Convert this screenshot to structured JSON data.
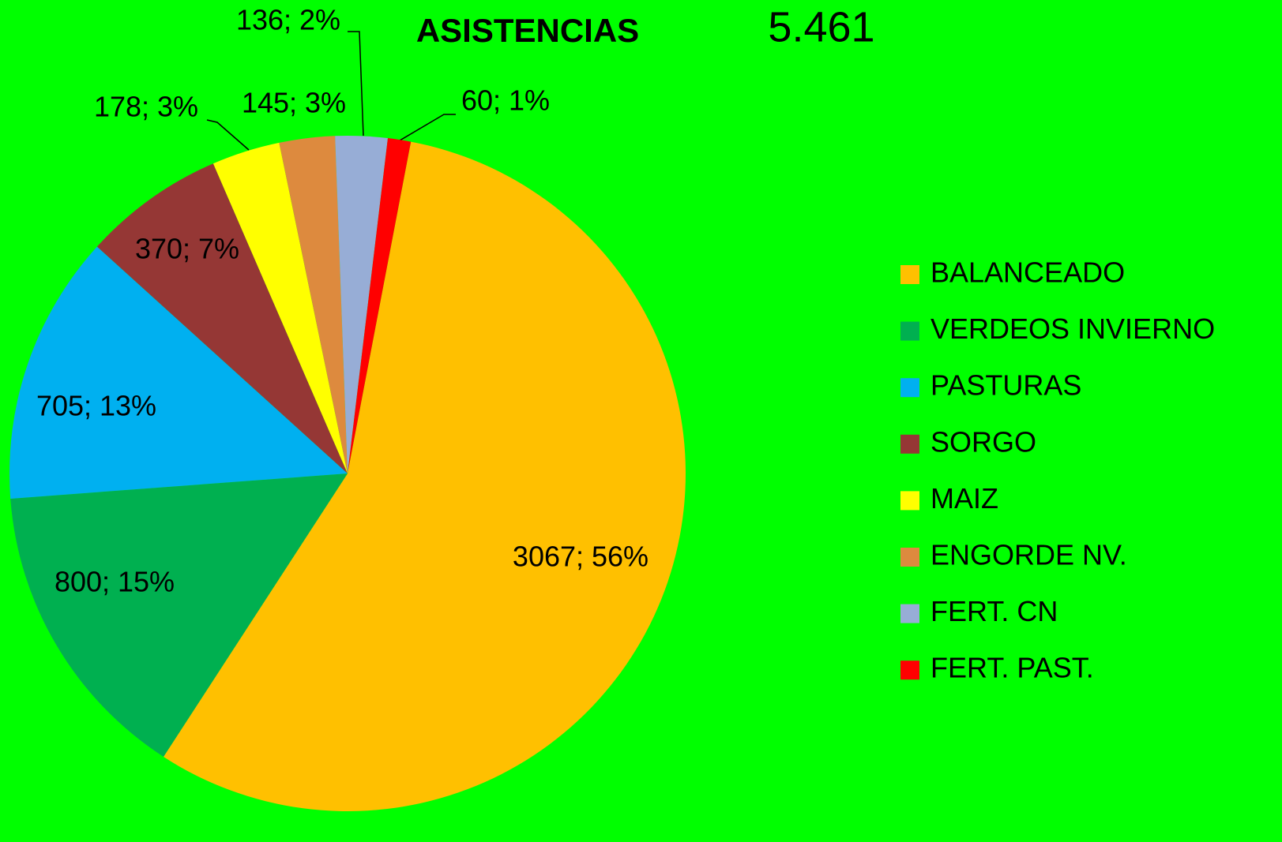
{
  "chart_data": {
    "type": "pie",
    "title": "ASISTENCIAS",
    "annotation": "5.461",
    "categories": [
      "BALANCEADO",
      "VERDEOS INVIERNO",
      "PASTURAS",
      "SORGO",
      "MAIZ",
      "ENGORDE NV.",
      "FERT. CN",
      "FERT. PAST."
    ],
    "values": [
      3067,
      800,
      705,
      370,
      178,
      145,
      136,
      60
    ],
    "value_labels": [
      "3067; 56%",
      "800; 15%",
      "705; 13%",
      "370; 7%",
      "178; 3%",
      "145; 3%",
      "136; 2%",
      "60; 1%"
    ],
    "colors": [
      "#FFC000",
      "#00B050",
      "#00B0F0",
      "#953735",
      "#FFFF00",
      "#DD8A3E",
      "#97ADD6",
      "#FF0000"
    ],
    "background": "#00FF00",
    "legend": "right"
  }
}
